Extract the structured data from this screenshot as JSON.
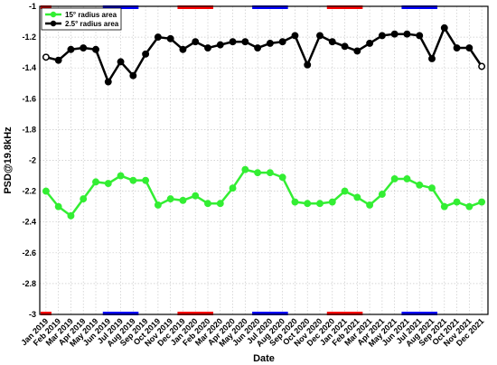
{
  "chart_data": {
    "type": "line",
    "xlabel": "Date",
    "ylabel": "PSD@19.8kHz",
    "ylim": [
      -3,
      -1
    ],
    "yticks": [
      -1,
      -1.2,
      -1.4,
      -1.6,
      -1.8,
      -2,
      -2.2,
      -2.4,
      -2.6,
      -2.8,
      -3
    ],
    "grid": true,
    "legend_position": "top-left",
    "categories": [
      "Jan 2019",
      "Feb 2019",
      "Mar 2019",
      "Apr 2019",
      "May 2019",
      "Jun 2019",
      "Jul 2019",
      "Aug 2019",
      "Sep 2019",
      "Oct 2019",
      "Nov 2019",
      "Dec 2019",
      "Jan 2020",
      "Feb 2020",
      "Mar 2020",
      "Apr 2020",
      "May 2020",
      "Jun 2020",
      "Jul 2020",
      "Aug 2020",
      "Sep 2020",
      "Oct 2020",
      "Nov 2020",
      "Dec 2020",
      "Jan 2021",
      "Feb 2021",
      "Mar 2021",
      "Apr 2021",
      "May 2021",
      "Jun 2021",
      "Jul 2021",
      "Aug 2021",
      "Sep 2021",
      "Oct 2021",
      "Nov 2021",
      "Dec 2021"
    ],
    "series": [
      {
        "name": "15° radius area",
        "color": "#33ee33",
        "values": [
          -2.2,
          -2.3,
          -2.36,
          -2.25,
          -2.14,
          -2.15,
          -2.1,
          -2.13,
          -2.13,
          -2.29,
          -2.25,
          -2.26,
          -2.23,
          -2.28,
          -2.28,
          -2.18,
          -2.06,
          -2.08,
          -2.08,
          -2.11,
          -2.27,
          -2.28,
          -2.28,
          -2.27,
          -2.2,
          -2.24,
          -2.29,
          -2.22,
          -2.12,
          -2.12,
          -2.16,
          -2.18,
          -2.3,
          -2.27,
          -2.3,
          -2.27
        ]
      },
      {
        "name": "2.5° radius area",
        "color": "#000000",
        "values": [
          -1.33,
          -1.35,
          -1.28,
          -1.27,
          -1.28,
          -1.49,
          -1.36,
          -1.45,
          -1.31,
          -1.2,
          -1.21,
          -1.28,
          -1.23,
          -1.27,
          -1.25,
          -1.23,
          -1.23,
          -1.27,
          -1.24,
          -1.23,
          -1.19,
          -1.38,
          -1.19,
          -1.23,
          -1.26,
          -1.29,
          -1.24,
          -1.19,
          -1.18,
          -1.18,
          -1.19,
          -1.34,
          -1.14,
          -1.27,
          -1.27,
          -1.39
        ]
      }
    ],
    "period_markers": [
      {
        "from": 0,
        "to": 0,
        "color": "#ff0000"
      },
      {
        "from": 5,
        "to": 7,
        "color": "#0000ff"
      },
      {
        "from": 11,
        "to": 13,
        "color": "#ff0000"
      },
      {
        "from": 17,
        "to": 19,
        "color": "#0000ff"
      },
      {
        "from": 23,
        "to": 25,
        "color": "#ff0000"
      },
      {
        "from": 29,
        "to": 31,
        "color": "#0000ff"
      }
    ]
  }
}
